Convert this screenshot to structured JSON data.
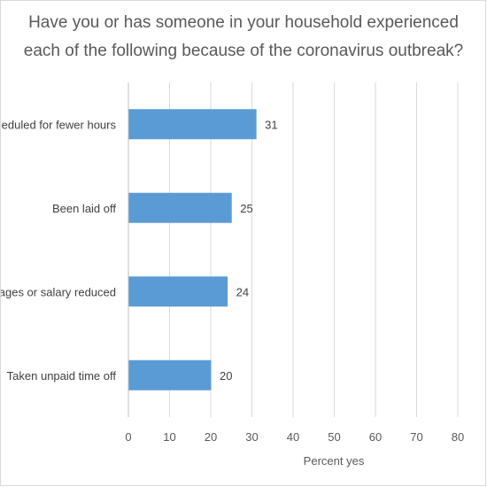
{
  "chart_data": {
    "type": "bar",
    "orientation": "horizontal",
    "title_lines": [
      "Have you or has someone in your household experienced",
      "each of the following because of the coronavirus outbreak?"
    ],
    "categories": [
      "Scheduled for fewer hours",
      "Been laid off",
      "Wages or salary reduced",
      "Taken unpaid time off"
    ],
    "values": [
      31,
      25,
      24,
      20
    ],
    "data_labels": [
      "31",
      "25",
      "24",
      "20"
    ],
    "xlabel": "Percent yes",
    "ylabel": "",
    "xlim": [
      0,
      80
    ],
    "x_ticks": [
      "0",
      "10",
      "20",
      "30",
      "40",
      "50",
      "60",
      "70",
      "80"
    ],
    "grid": true,
    "legend": "none",
    "bar_color": "#5b9bd5"
  }
}
